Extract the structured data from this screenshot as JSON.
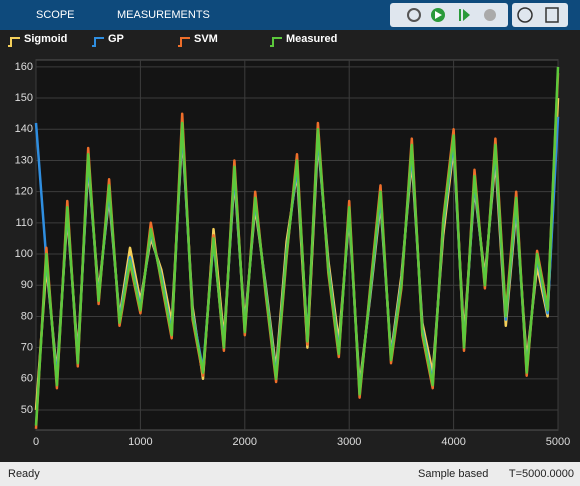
{
  "toolbar": {
    "tabs": [
      "SCOPE",
      "MEASUREMENTS"
    ]
  },
  "chart_data": {
    "type": "line",
    "x": [
      0,
      100,
      200,
      300,
      400,
      500,
      600,
      700,
      800,
      900,
      1000,
      1100,
      1200,
      1300,
      1400,
      1500,
      1600,
      1700,
      1800,
      1900,
      2000,
      2100,
      2200,
      2300,
      2400,
      2500,
      2600,
      2700,
      2800,
      2900,
      3000,
      3100,
      3200,
      3300,
      3400,
      3500,
      3600,
      3700,
      3800,
      3900,
      4000,
      4100,
      4200,
      4300,
      4400,
      4500,
      4600,
      4700,
      4800,
      4900,
      5000
    ],
    "series": [
      {
        "name": "Sigmoid",
        "color": "#f4cf5a",
        "values": [
          50,
          96,
          62,
          112,
          68,
          128,
          88,
          118,
          80,
          102,
          85,
          105,
          95,
          78,
          138,
          83,
          60,
          108,
          73,
          124,
          78,
          115,
          90,
          63,
          104,
          126,
          70,
          136,
          98,
          72,
          112,
          58,
          86,
          116,
          68,
          93,
          130,
          78,
          62,
          106,
          134,
          74,
          121,
          93,
          130,
          77,
          114,
          66,
          96,
          80,
          150
        ]
      },
      {
        "name": "GP",
        "color": "#2f8ee0",
        "values": [
          142,
          98,
          60,
          114,
          66,
          130,
          86,
          120,
          79,
          99,
          83,
          107,
          93,
          75,
          140,
          81,
          63,
          104,
          71,
          126,
          76,
          117,
          89,
          61,
          101,
          128,
          73,
          138,
          96,
          69,
          114,
          56,
          87,
          118,
          67,
          91,
          133,
          76,
          59,
          109,
          136,
          71,
          123,
          91,
          133,
          79,
          116,
          63,
          99,
          81,
          144
        ]
      },
      {
        "name": "SVM",
        "color": "#ee6e2a",
        "values": [
          44,
          102,
          57,
          117,
          64,
          134,
          84,
          124,
          77,
          97,
          81,
          110,
          91,
          73,
          145,
          79,
          61,
          106,
          69,
          130,
          74,
          120,
          87,
          59,
          99,
          132,
          71,
          142,
          94,
          67,
          117,
          54,
          89,
          122,
          65,
          89,
          137,
          74,
          57,
          111,
          140,
          69,
          127,
          89,
          137,
          81,
          120,
          61,
          101,
          83,
          158
        ]
      },
      {
        "name": "Measured",
        "color": "#5cc83c",
        "values": [
          45,
          100,
          58,
          115,
          65,
          132,
          85,
          122,
          78,
          98,
          82,
          108,
          92,
          74,
          142,
          80,
          62,
          105,
          70,
          128,
          75,
          118,
          88,
          60,
          100,
          130,
          72,
          140,
          95,
          68,
          115,
          55,
          88,
          120,
          66,
          90,
          135,
          75,
          58,
          110,
          138,
          70,
          125,
          90,
          135,
          80,
          118,
          62,
          100,
          82,
          160
        ]
      }
    ],
    "xlim": [
      0,
      5000
    ],
    "xticks": [
      0,
      1000,
      2000,
      3000,
      4000,
      5000
    ],
    "ylim": [
      43.6,
      162.2
    ],
    "yticks": [
      50,
      60,
      70,
      80,
      90,
      100,
      110,
      120,
      130,
      140,
      150,
      160
    ],
    "grid": true
  },
  "status": {
    "left": "Ready",
    "mode": "Sample based",
    "time": "T=5000.0000"
  }
}
